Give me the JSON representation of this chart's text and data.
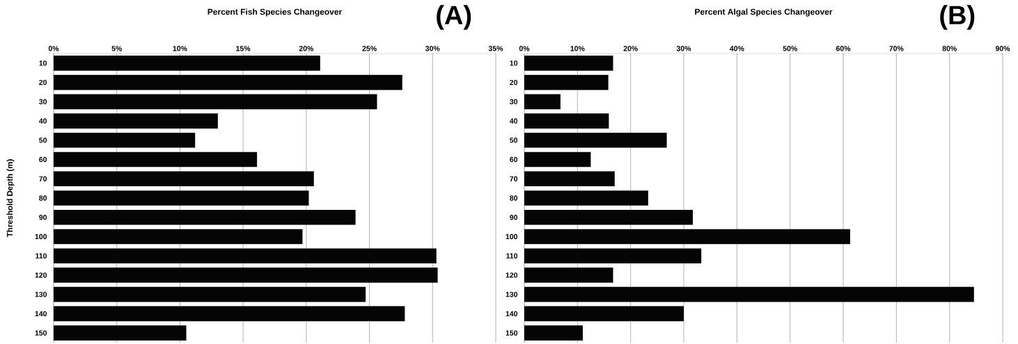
{
  "chart_data": [
    {
      "type": "bar",
      "orientation": "horizontal",
      "title": "Percent Fish Species Changeover",
      "ylabel": "Threshold Depth (m)",
      "annotations": [
        "(A)"
      ],
      "categories": [
        "10",
        "20",
        "30",
        "40",
        "50",
        "60",
        "70",
        "80",
        "90",
        "100",
        "110",
        "120",
        "130",
        "140",
        "150"
      ],
      "values": [
        21.1,
        27.6,
        25.6,
        13.0,
        11.2,
        16.1,
        20.6,
        20.2,
        23.9,
        19.7,
        30.3,
        30.4,
        24.7,
        27.8,
        10.5
      ],
      "color": "#050505",
      "xlim": [
        0,
        35
      ],
      "xticks": [
        {
          "value": 0,
          "label": "0%"
        },
        {
          "value": 5,
          "label": "5%"
        },
        {
          "value": 10,
          "label": "10%"
        },
        {
          "value": 15,
          "label": "15%"
        },
        {
          "value": 20,
          "label": "20%"
        },
        {
          "value": 25,
          "label": "25%"
        },
        {
          "value": 30,
          "label": "30%"
        },
        {
          "value": 35,
          "label": "35%"
        }
      ],
      "grid": "x"
    },
    {
      "type": "bar",
      "orientation": "horizontal",
      "title": "Percent Algal Species Changeover",
      "annotations": [
        "(B)"
      ],
      "categories": [
        "10",
        "20",
        "30",
        "40",
        "50",
        "60",
        "70",
        "80",
        "90",
        "100",
        "110",
        "120",
        "130",
        "140",
        "150"
      ],
      "values": [
        16.7,
        15.8,
        6.8,
        15.9,
        26.8,
        12.5,
        17.0,
        23.3,
        31.7,
        61.3,
        33.3,
        16.7,
        84.6,
        30.0,
        11.0
      ],
      "color": "#050505",
      "xlim": [
        0,
        90
      ],
      "xticks": [
        {
          "value": 0,
          "label": "0%"
        },
        {
          "value": 10,
          "label": "10%"
        },
        {
          "value": 20,
          "label": "20%"
        },
        {
          "value": 30,
          "label": "30%"
        },
        {
          "value": 40,
          "label": "40%"
        },
        {
          "value": 50,
          "label": "50%"
        },
        {
          "value": 60,
          "label": "60%"
        },
        {
          "value": 70,
          "label": "70%"
        },
        {
          "value": 80,
          "label": "80%"
        },
        {
          "value": 90,
          "label": "90%"
        }
      ],
      "grid": "x"
    }
  ]
}
